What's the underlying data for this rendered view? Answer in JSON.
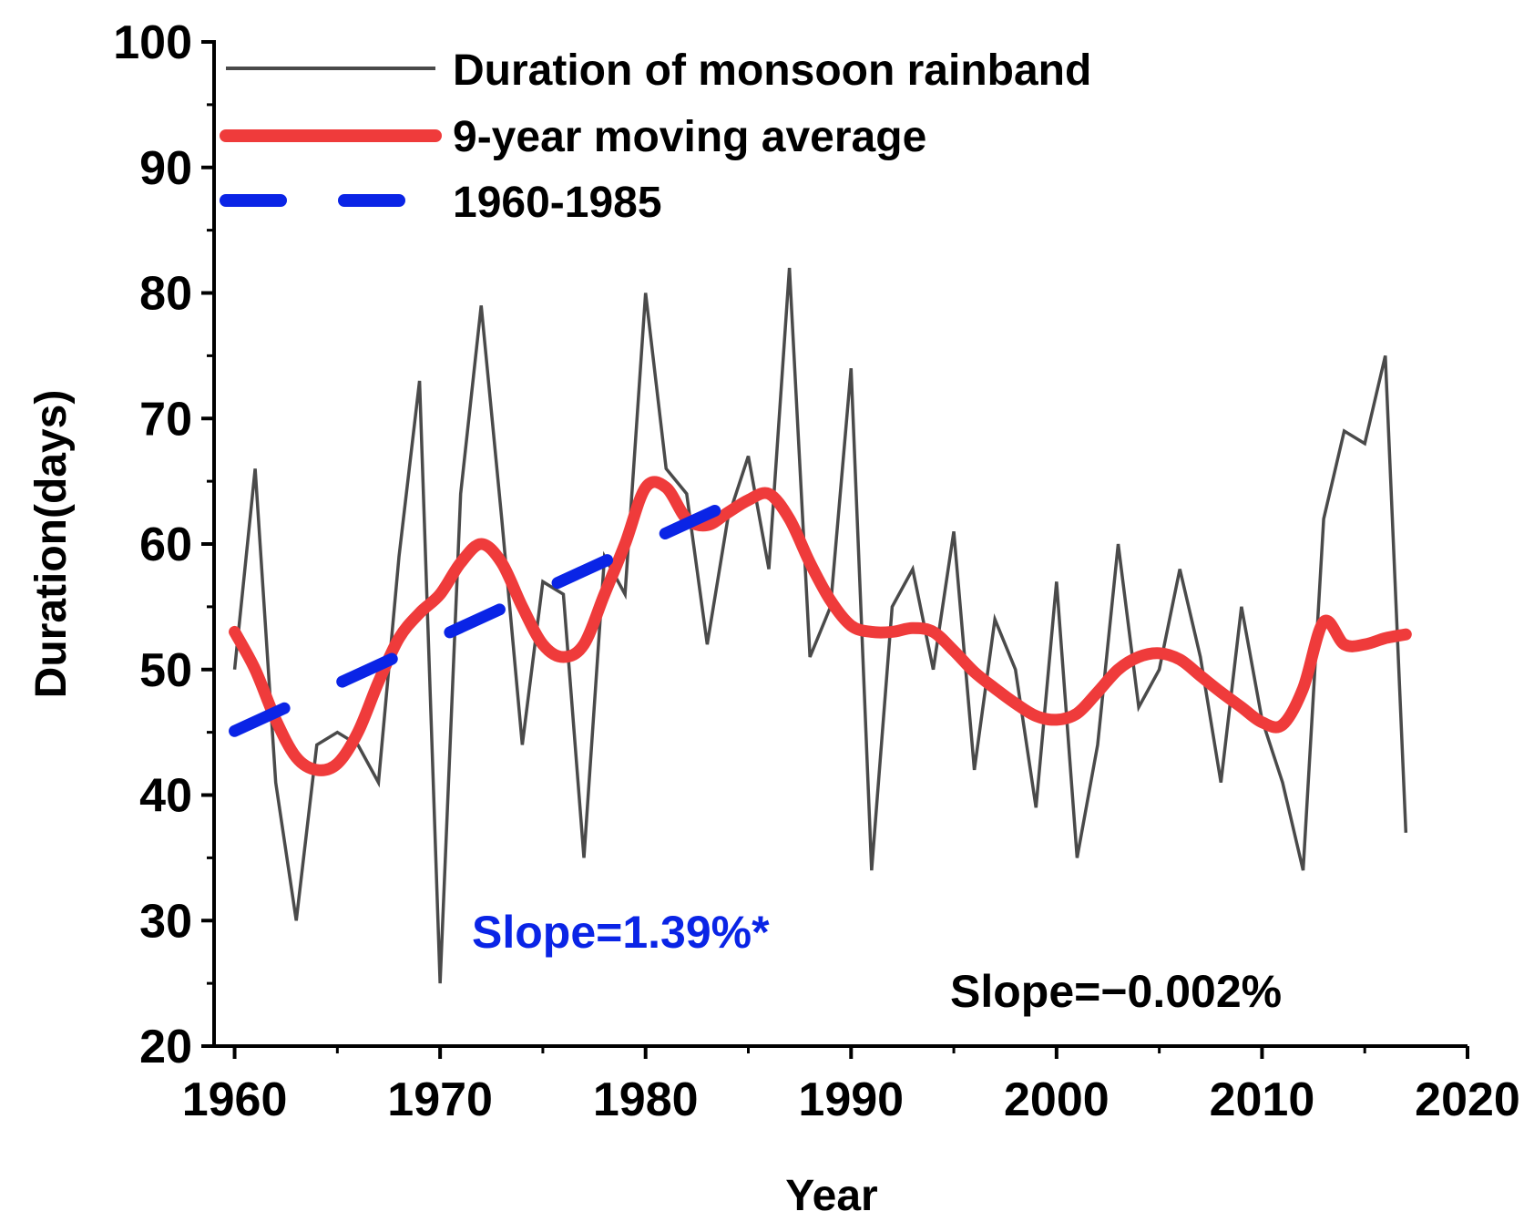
{
  "chart_data": {
    "type": "line",
    "xlabel": "Year",
    "ylabel": "Duration(days)",
    "xlim": [
      1959,
      2020
    ],
    "ylim": [
      20,
      100
    ],
    "xticks": [
      1960,
      1970,
      1980,
      1990,
      2000,
      2010,
      2020
    ],
    "yticks": [
      20,
      30,
      40,
      50,
      60,
      70,
      80,
      90,
      100
    ],
    "legend_position": "top-left",
    "series": [
      {
        "name": "Duration of monsoon rainband",
        "color": "#4a4a4a",
        "style": "solid-thin",
        "x": [
          1960,
          1961,
          1962,
          1963,
          1964,
          1965,
          1966,
          1967,
          1968,
          1969,
          1970,
          1971,
          1972,
          1973,
          1974,
          1975,
          1976,
          1977,
          1978,
          1979,
          1980,
          1981,
          1982,
          1983,
          1984,
          1985,
          1986,
          1987,
          1988,
          1989,
          1990,
          1991,
          1992,
          1993,
          1994,
          1995,
          1996,
          1997,
          1998,
          1999,
          2000,
          2001,
          2002,
          2003,
          2004,
          2005,
          2006,
          2007,
          2008,
          2009,
          2010,
          2011,
          2012,
          2013,
          2014,
          2015,
          2016,
          2017
        ],
        "values": [
          50,
          66,
          41,
          30,
          44,
          45,
          44,
          41,
          59,
          73,
          25,
          64,
          79,
          62,
          44,
          57,
          56,
          35,
          59,
          56,
          80,
          66,
          64,
          52,
          62,
          67,
          58,
          82,
          51,
          55,
          74,
          34,
          55,
          58,
          50,
          61,
          42,
          54,
          50,
          39,
          57,
          35,
          44,
          60,
          47,
          50,
          58,
          51,
          41,
          55,
          46,
          41,
          34,
          62,
          69,
          68,
          75,
          37
        ]
      },
      {
        "name": "9-year moving average",
        "color": "#ef3b3b",
        "style": "solid-thick",
        "x": [
          1960,
          1961,
          1962,
          1963,
          1964,
          1965,
          1966,
          1967,
          1968,
          1969,
          1970,
          1971,
          1972,
          1973,
          1974,
          1975,
          1976,
          1977,
          1978,
          1979,
          1980,
          1981,
          1982,
          1983,
          1984,
          1985,
          1986,
          1987,
          1988,
          1989,
          1990,
          1991,
          1992,
          1993,
          1994,
          1995,
          1996,
          1997,
          1998,
          1999,
          2000,
          2001,
          2002,
          2003,
          2004,
          2005,
          2006,
          2007,
          2008,
          2009,
          2010,
          2011,
          2012,
          2013,
          2014,
          2015,
          2016,
          2017
        ],
        "values": [
          53,
          50,
          46,
          43,
          42,
          42.5,
          45,
          49,
          52.5,
          54.5,
          56,
          58.5,
          60,
          58.5,
          55,
          52,
          51,
          52,
          56,
          60,
          64.5,
          64.5,
          62,
          61.5,
          62.5,
          63.5,
          64,
          62,
          58.5,
          55.5,
          53.5,
          53,
          53,
          53.3,
          53,
          51.5,
          49.8,
          48.5,
          47.3,
          46.3,
          46,
          46.5,
          48.2,
          50,
          51,
          51.3,
          50.8,
          49.5,
          48.2,
          47,
          45.8,
          45.6,
          48.5,
          53.8,
          52,
          52,
          52.5,
          52.8
        ]
      },
      {
        "name": "1960-1985",
        "color": "#0a24e6",
        "style": "dashed-thick",
        "x": [
          1960,
          1984.5
        ],
        "values": [
          45.1,
          63.5
        ]
      }
    ],
    "annotations": [
      {
        "text": "Slope=1.39%*",
        "color": "#0a24e6"
      },
      {
        "text": "Slope=−0.002%",
        "color": "#000000"
      }
    ]
  }
}
